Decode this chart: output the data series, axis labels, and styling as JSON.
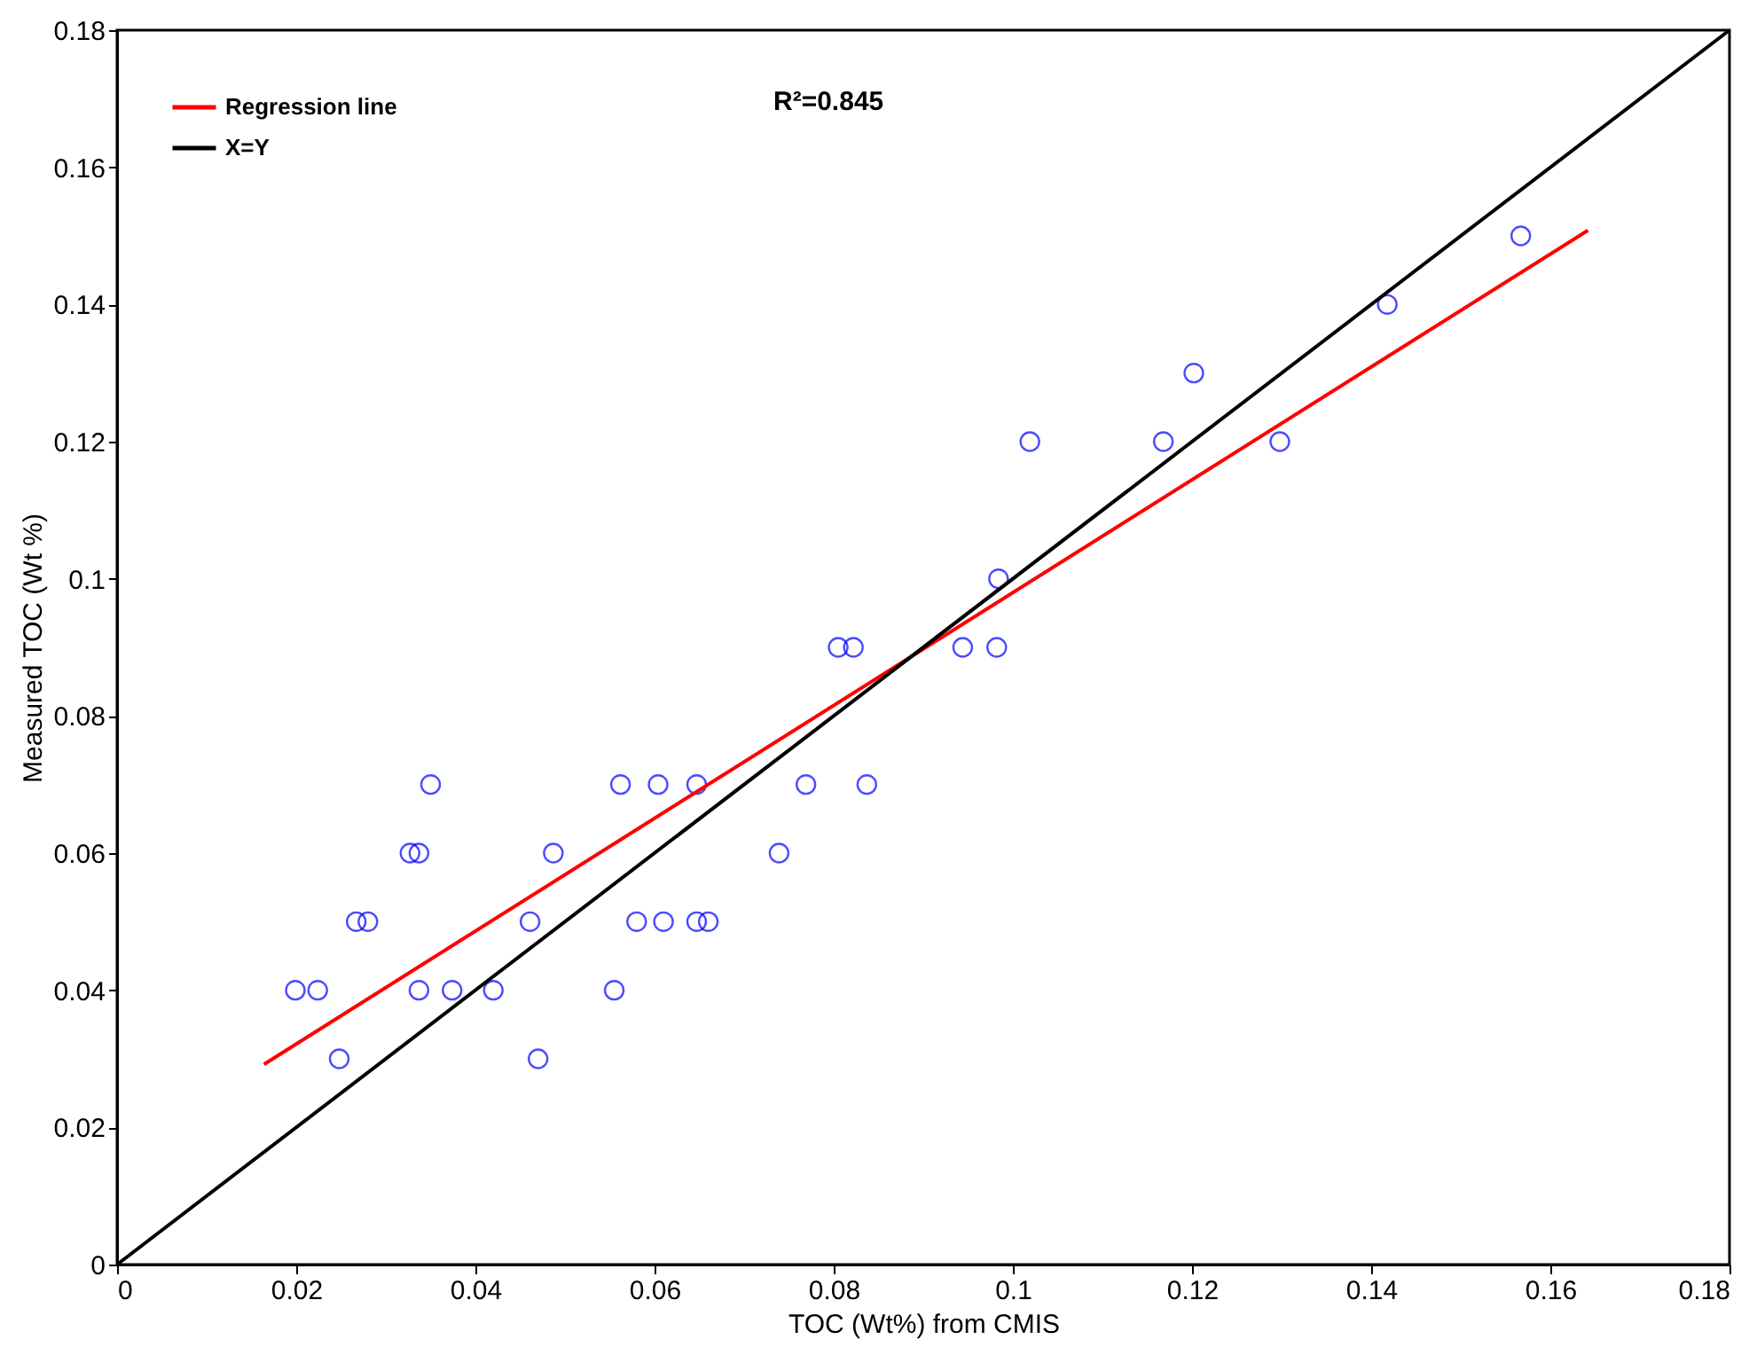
{
  "chart_data": {
    "type": "scatter",
    "xlabel": "TOC (Wt%) from CMIS",
    "ylabel": "Measured TOC (Wt %)",
    "annotations": [
      "R²=0.845"
    ],
    "xlim": [
      0,
      0.18
    ],
    "ylim": [
      0,
      0.18
    ],
    "xticks": [
      0,
      0.02,
      0.04,
      0.06,
      0.08,
      0.1,
      0.12,
      0.14,
      0.16,
      0.18
    ],
    "yticks": [
      0,
      0.02,
      0.04,
      0.06,
      0.08,
      0.1,
      0.12,
      0.14,
      0.16,
      0.18
    ],
    "grid": false,
    "legend": "top left",
    "series": [
      {
        "type": "scatter",
        "marker": "circle",
        "color": "#0000ff",
        "x": [
          0.0199,
          0.0224,
          0.0248,
          0.0267,
          0.028,
          0.0327,
          0.0337,
          0.0337,
          0.035,
          0.0374,
          0.042,
          0.0461,
          0.047,
          0.0487,
          0.0555,
          0.0562,
          0.058,
          0.0604,
          0.061,
          0.0647,
          0.0647,
          0.066,
          0.0739,
          0.0769,
          0.0805,
          0.0822,
          0.0837,
          0.0944,
          0.0982,
          0.0984,
          0.1019,
          0.1168,
          0.1202,
          0.1298,
          0.1418,
          0.1567
        ],
        "values": [
          0.04,
          0.04,
          0.03,
          0.05,
          0.05,
          0.06,
          0.06,
          0.04,
          0.07,
          0.04,
          0.04,
          0.05,
          0.03,
          0.06,
          0.04,
          0.07,
          0.05,
          0.07,
          0.05,
          0.07,
          0.05,
          0.05,
          0.06,
          0.07,
          0.09,
          0.09,
          0.07,
          0.09,
          0.09,
          0.1,
          0.12,
          0.12,
          0.13,
          0.12,
          0.14,
          0.15
        ]
      },
      {
        "type": "line",
        "name": "Regression line",
        "color": "#ff0000",
        "x": [
          0.0164,
          0.1642
        ],
        "values": [
          0.0292,
          0.1508
        ]
      },
      {
        "type": "line",
        "name": "X=Y",
        "color": "#000000",
        "x": [
          0,
          0.18
        ],
        "values": [
          0,
          0.18
        ]
      }
    ]
  }
}
